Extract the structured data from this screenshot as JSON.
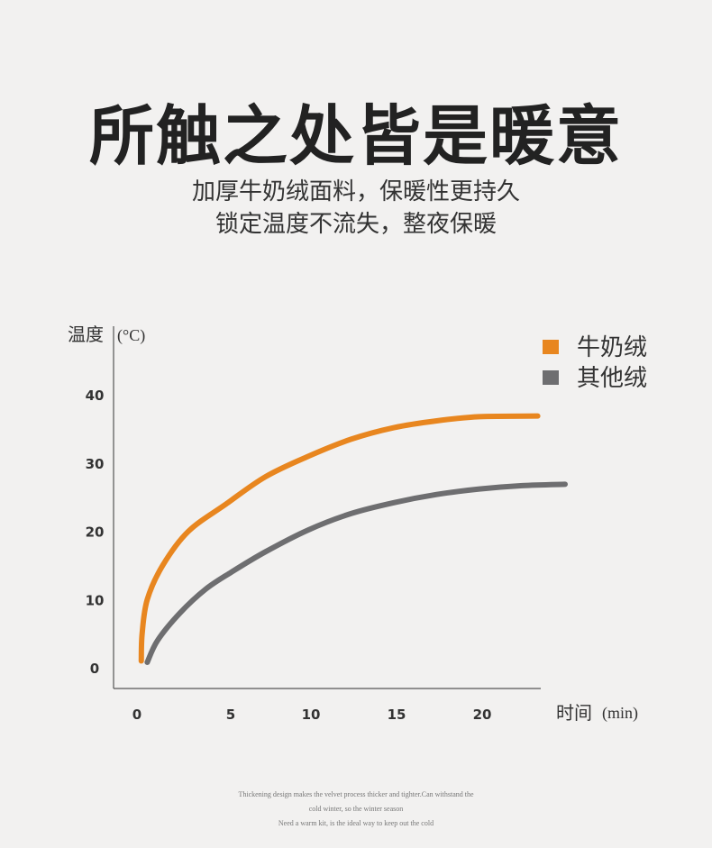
{
  "title": "所触之处皆是暖意",
  "subtitle_lines": [
    "加厚牛奶绒面料，保暖性更持久",
    "锁定温度不流失，整夜保暖"
  ],
  "footnote_lines": [
    "Thickening design makes the velvet process thicker and tighter.Can withstand the",
    "cold winter, so the winter season",
    "Need a warm kit, is the ideal way to keep out the cold"
  ],
  "chart_data": {
    "type": "line",
    "ylabel": "温度",
    "yunit": "(°C)",
    "xlabel": "时间",
    "xunit": "(min)",
    "xticks": [
      0,
      5,
      10,
      15,
      20
    ],
    "yticks": [
      0,
      10,
      20,
      30,
      40
    ],
    "xlim": [
      0,
      25
    ],
    "ylim": [
      0,
      45
    ],
    "legend_position": "top-right",
    "grid": false,
    "series": [
      {
        "name": "牛奶绒",
        "color": "#e8861f",
        "points": [
          [
            0.25,
            1
          ],
          [
            0.3,
            5
          ],
          [
            0.6,
            10
          ],
          [
            1.5,
            15
          ],
          [
            3,
            20
          ],
          [
            5.2,
            24
          ],
          [
            7.5,
            28
          ],
          [
            10,
            31
          ],
          [
            12.5,
            33.5
          ],
          [
            15,
            35.2
          ],
          [
            17.5,
            36.2
          ],
          [
            20,
            36.8
          ],
          [
            23.4,
            36.9
          ]
        ]
      },
      {
        "name": "其他绒",
        "color": "#6e6e70",
        "points": [
          [
            0.6,
            0.8
          ],
          [
            1.2,
            4
          ],
          [
            2.5,
            8
          ],
          [
            4,
            11.5
          ],
          [
            5.5,
            14
          ],
          [
            7.5,
            17
          ],
          [
            10,
            20.2
          ],
          [
            12.5,
            22.6
          ],
          [
            15,
            24.2
          ],
          [
            17.5,
            25.4
          ],
          [
            20,
            26.2
          ],
          [
            22.5,
            26.7
          ],
          [
            25,
            26.9
          ]
        ]
      }
    ]
  }
}
